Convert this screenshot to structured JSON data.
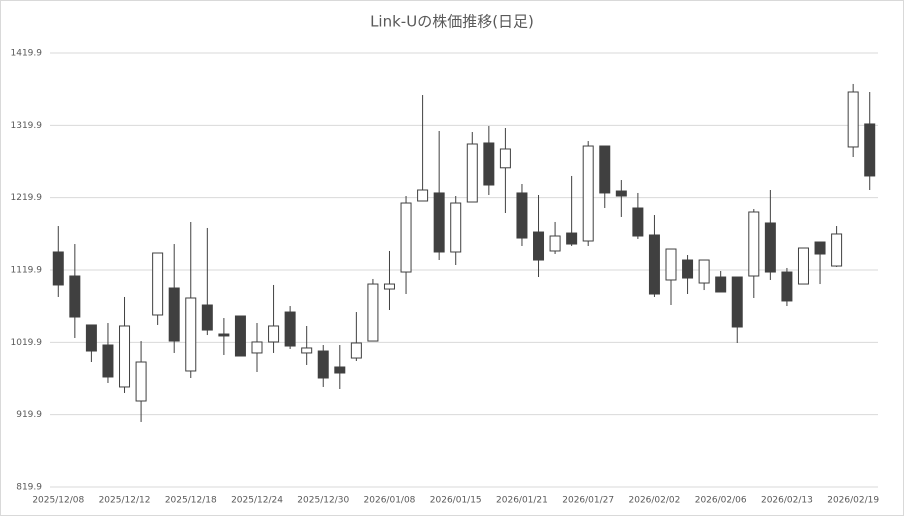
{
  "chart_data": {
    "type": "candlestick",
    "title": "Link-Uの株価推移(日足)",
    "categories": [
      "2025/12/08",
      null,
      null,
      null,
      "2025/12/12",
      null,
      null,
      null,
      "2025/12/18",
      null,
      null,
      null,
      "2025/12/24",
      null,
      null,
      null,
      "2025/12/30",
      null,
      null,
      null,
      "2026/01/08",
      null,
      null,
      null,
      "2026/01/15",
      null,
      null,
      null,
      "2026/01/21",
      null,
      null,
      null,
      "2026/01/27",
      null,
      null,
      null,
      "2026/02/02",
      null,
      null,
      null,
      "2026/02/06",
      null,
      null,
      null,
      "2026/02/13",
      null,
      null,
      null,
      "2026/02/19",
      null
    ],
    "open": [
      1144.8,
      1111.6,
      1043.9,
      1016.2,
      958.2,
      938.8,
      1057.7,
      1095.0,
      980.3,
      1071.5,
      1031.4,
      1056.3,
      1005.2,
      1020.4,
      1061.8,
      1005.2,
      1007.9,
      985.8,
      998.2,
      1021.7,
      1093.6,
      1117.1,
      1215.3,
      1226.4,
      1144.8,
      1213.9,
      1295.5,
      1261.2,
      1226.4,
      1172.4,
      1146.2,
      1171.0,
      1160.0,
      1291.3,
      1229.1,
      1205.6,
      1168.3,
      1106.1,
      1133.7,
      1101.9,
      1110.2,
      1110.2,
      1111.6,
      1184.9,
      1117.1,
      1100.5,
      1158.6,
      1125.4,
      1290.0,
      1321.8
    ],
    "high": [
      1180.7,
      1155.8,
      1043.9,
      1046.6,
      1082.6,
      1021.7,
      1143.4,
      1155.8,
      1186.3,
      1178.0,
      1053.5,
      1056.3,
      1046.6,
      1099.2,
      1070.1,
      1042.5,
      1016.2,
      1016.2,
      1061.8,
      1107.5,
      1146.2,
      1222.2,
      1361.8,
      1312.1,
      1222.2,
      1310.7,
      1319.0,
      1316.2,
      1238.8,
      1223.6,
      1186.3,
      1249.9,
      1298.2,
      1291.3,
      1244.3,
      1226.4,
      1195.9,
      1148.9,
      1140.6,
      1133.7,
      1118.5,
      1110.2,
      1204.2,
      1230.5,
      1122.7,
      1150.3,
      1158.6,
      1180.7,
      1377.1,
      1366.0
    ],
    "low": [
      1082.6,
      1025.9,
      992.7,
      963.7,
      949.9,
      909.8,
      1043.9,
      1005.2,
      970.6,
      1030.0,
      1002.4,
      1001.0,
      978.9,
      1005.2,
      1010.7,
      988.6,
      958.2,
      955.4,
      994.1,
      1021.7,
      1064.6,
      1086.7,
      1215.3,
      1133.7,
      1126.8,
      1213.9,
      1223.6,
      1198.7,
      1153.1,
      1110.2,
      1142.0,
      1153.1,
      1153.1,
      1205.6,
      1193.2,
      1162.8,
      1082.6,
      1071.5,
      1086.7,
      1092.2,
      1089.5,
      1019.0,
      1081.2,
      1106.1,
      1070.1,
      1100.5,
      1100.5,
      1124.1,
      1276.1,
      1230.5
    ],
    "close": [
      1099.2,
      1054.9,
      1007.9,
      972.0,
      1042.5,
      992.7,
      1143.4,
      1021.7,
      1081.2,
      1036.9,
      1028.7,
      1001.0,
      1020.4,
      1042.5,
      1014.8,
      1012.1,
      970.6,
      977.5,
      1019.0,
      1100.5,
      1100.5,
      1212.5,
      1230.5,
      1144.8,
      1212.5,
      1294.1,
      1237.4,
      1287.2,
      1164.1,
      1133.7,
      1166.9,
      1155.8,
      1291.3,
      1226.4,
      1222.2,
      1166.9,
      1086.7,
      1148.9,
      1108.8,
      1133.7,
      1089.5,
      1041.1,
      1200.1,
      1117.1,
      1077.1,
      1150.3,
      1142.0,
      1169.7,
      1366.0,
      1249.9
    ],
    "up_color": "#ffffff",
    "down_color": "#404040",
    "line_color": "#404040",
    "ylim": [
      819.9,
      1419.9
    ],
    "yticks": [
      819.9,
      919.9,
      1019.9,
      1119.9,
      1219.9,
      1319.9,
      1419.9
    ],
    "grid": true
  }
}
